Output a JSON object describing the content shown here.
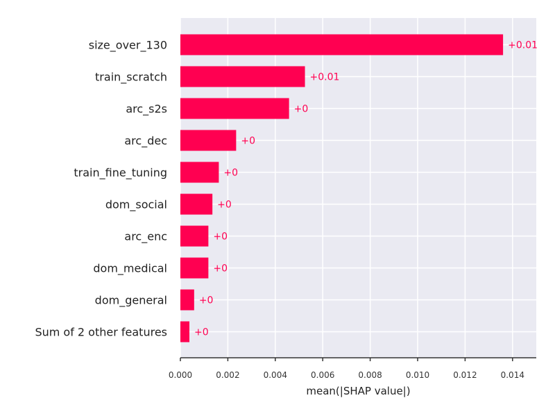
{
  "chart_data": {
    "type": "bar",
    "orientation": "horizontal",
    "categories": [
      "size_over_130",
      "train_scratch",
      "arc_s2s",
      "arc_dec",
      "train_fine_tuning",
      "dom_social",
      "arc_enc",
      "dom_medical",
      "dom_general",
      "Sum of 2 other features"
    ],
    "values": [
      0.0136,
      0.00525,
      0.00458,
      0.00235,
      0.00162,
      0.00135,
      0.00118,
      0.00118,
      0.00058,
      0.00038
    ],
    "data_labels": [
      "+0.01",
      "+0.01",
      "+0",
      "+0",
      "+0",
      "+0",
      "+0",
      "+0",
      "+0",
      "+0"
    ],
    "xlabel": "mean(|SHAP value|)",
    "xlim": [
      0,
      0.015
    ],
    "xticks": [
      0.0,
      0.002,
      0.004,
      0.006,
      0.008,
      0.01,
      0.012,
      0.014
    ],
    "xtick_labels": [
      "0.000",
      "0.002",
      "0.004",
      "0.006",
      "0.008",
      "0.010",
      "0.012",
      "0.014"
    ],
    "grid": true,
    "colors": {
      "bar": "#ff0051",
      "plot_background": "#eaeaf2",
      "grid": "#ffffff",
      "axis": "#333333"
    }
  }
}
